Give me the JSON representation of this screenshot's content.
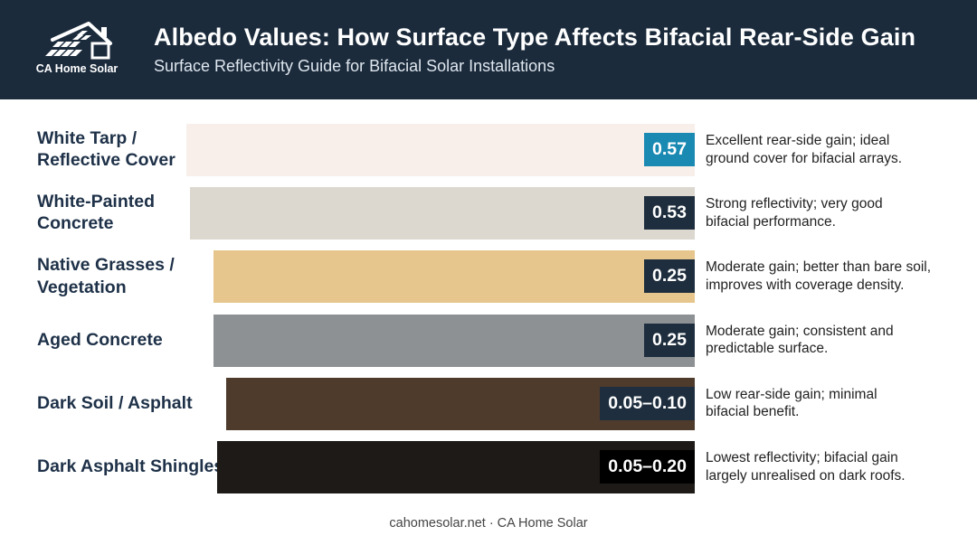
{
  "header": {
    "logo_text": "CA Home Solar",
    "title": "Albedo Values: How Surface Type Affects Bifacial Rear-Side Gain",
    "subtitle": "Surface Reflectivity Guide for Bifacial Solar Installations"
  },
  "colors": {
    "header_bg": "#1b2b3c",
    "accent_value_box": "#1a8ab3",
    "dark_value_box": "#1e2e3e",
    "black_value_box": "#000000"
  },
  "chart_data": {
    "type": "bar",
    "orientation": "horizontal",
    "categories": [
      "White Tarp / Reflective Cover",
      "White-Painted Concrete",
      "Native Grasses / Vegetation",
      "Aged Concrete",
      "Dark Soil / Asphalt",
      "Dark Asphalt Shingles"
    ],
    "values": [
      0.57,
      0.53,
      0.25,
      0.25,
      [
        0.05,
        0.1
      ],
      [
        0.05,
        0.2
      ]
    ],
    "rows": [
      {
        "label_lines": [
          "White Tarp /",
          "Reflective Cover"
        ],
        "value": 0.57,
        "value_label": "0.57",
        "bar_color": "#f9efea",
        "box_color": "#1a8ab3",
        "desc_lines": [
          "Excellent rear-side gain; ideal",
          "ground cover for bifacial arrays."
        ]
      },
      {
        "label_lines": [
          "White-Painted",
          "Concrete"
        ],
        "value": 0.53,
        "value_label": "0.53",
        "bar_color": "#dcd8d0",
        "box_color": "#1e2e3e",
        "desc_lines": [
          "Strong reflectivity; very good",
          "bifacial performance."
        ]
      },
      {
        "label_lines": [
          "Native Grasses /",
          "Vegetation"
        ],
        "value": 0.25,
        "value_label": "0.25",
        "bar_color": "#e6c68c",
        "box_color": "#1e2e3e",
        "desc_lines": [
          "Moderate gain; better than bare soil,",
          "improves with coverage density."
        ]
      },
      {
        "label_lines": [
          "Aged Concrete"
        ],
        "value": 0.25,
        "value_label": "0.25",
        "bar_color": "#8e9193",
        "box_color": "#1e2e3e",
        "desc_lines": [
          "Moderate gain; consistent and",
          "predictable surface."
        ]
      },
      {
        "label_lines": [
          "Dark Soil / Asphalt"
        ],
        "value": [
          0.05,
          0.1
        ],
        "value_label": "0.05–0.10",
        "bar_color": "#4e3b2c",
        "box_color": "#1e2e3e",
        "desc_lines": [
          "Low rear-side gain; minimal",
          "bifacial benefit."
        ]
      },
      {
        "label_lines": [
          "Dark Asphalt Shingles"
        ],
        "value": [
          0.05,
          0.2
        ],
        "value_label": "0.05–0.20",
        "bar_color": "#1d1a17",
        "box_color": "#000000",
        "desc_lines": [
          "Lowest reflectivity; bifacial gain",
          "largely unrealised on dark roofs."
        ]
      }
    ],
    "title": "Albedo Values: How Surface Type Affects Bifacial Rear-Side Gain",
    "grid": false,
    "legend": "none"
  },
  "footer": {
    "text": "cahomesolar.net · CA Home Solar"
  }
}
